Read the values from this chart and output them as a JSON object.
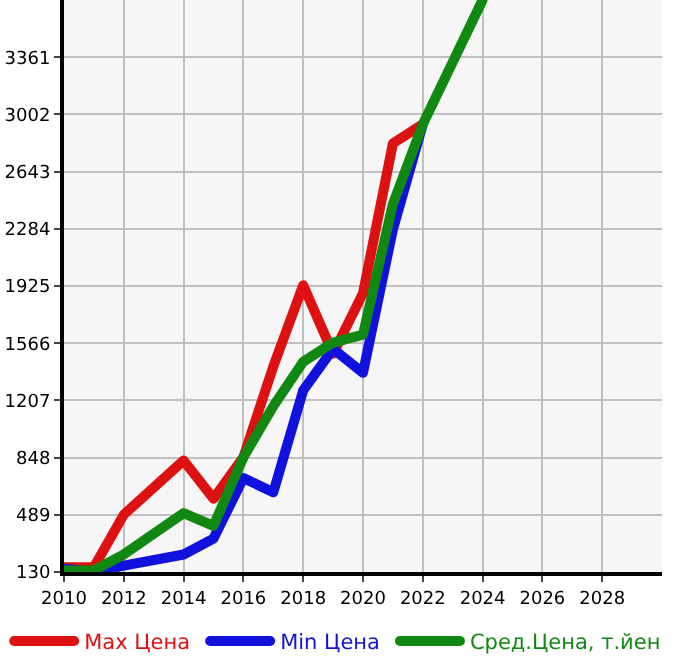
{
  "chart_data": {
    "type": "line",
    "x": [
      2010,
      2011,
      2012,
      2014,
      2015,
      2016,
      2017,
      2018,
      2019,
      2020,
      2021,
      2022,
      2023,
      2024
    ],
    "series": [
      {
        "name": "Max Цена",
        "color": "#dd1111",
        "values": [
          160,
          160,
          490,
          830,
          590,
          850,
          1420,
          1930,
          1500,
          1880,
          2820,
          2940,
          null,
          null
        ]
      },
      {
        "name": "Min Цена",
        "color": "#1111dd",
        "values": [
          150,
          130,
          170,
          240,
          340,
          720,
          630,
          1270,
          1530,
          1380,
          2280,
          2940,
          null,
          null
        ]
      },
      {
        "name": "Сред.Цена, т.йен",
        "color": "#118811",
        "values": [
          140,
          140,
          240,
          500,
          420,
          850,
          1170,
          1450,
          1570,
          1620,
          2440,
          2940,
          3330,
          3720
        ]
      }
    ],
    "xlim": [
      2010,
      2030
    ],
    "xticks": [
      2010,
      2012,
      2014,
      2016,
      2018,
      2020,
      2022,
      2024,
      2026,
      2028
    ],
    "ylim": [
      130,
      3720
    ],
    "yticks": [
      130,
      489,
      848,
      1207,
      1566,
      1925,
      2284,
      2643,
      3002,
      3361
    ],
    "grid": true,
    "legend": "bottom",
    "marker": "none",
    "line_style": "solid"
  }
}
